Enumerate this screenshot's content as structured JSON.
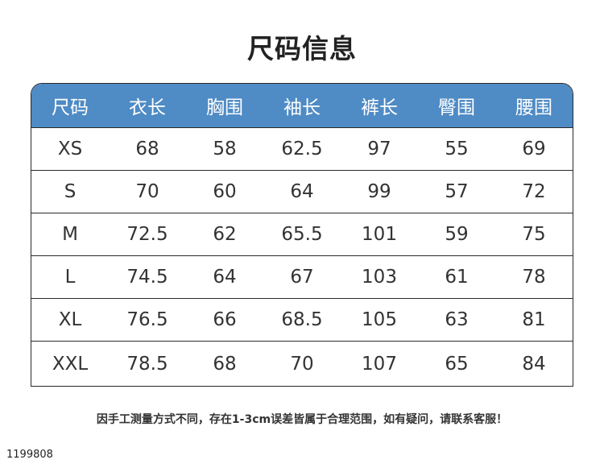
{
  "title": "尺码信息",
  "table": {
    "header": [
      "尺码",
      "衣长",
      "胸围",
      "袖长",
      "裤长",
      "臀围",
      "腰围"
    ],
    "rows": [
      [
        "XS",
        68,
        58,
        62.5,
        97,
        55,
        69
      ],
      [
        "S",
        70,
        60,
        64,
        99,
        57,
        72
      ],
      [
        "M",
        72.5,
        62,
        65.5,
        101,
        59,
        75
      ],
      [
        "L",
        74.5,
        64,
        67,
        103,
        61,
        78
      ],
      [
        "XL",
        76.5,
        66,
        68.5,
        105,
        63,
        81
      ],
      [
        "XXL",
        78.5,
        68,
        70,
        107,
        65,
        84
      ]
    ]
  },
  "note": "因手工测量方式不同，存在1-3cm误差皆属于合理范围，如有疑问，请联系客服！",
  "footer_code": "1199808"
}
